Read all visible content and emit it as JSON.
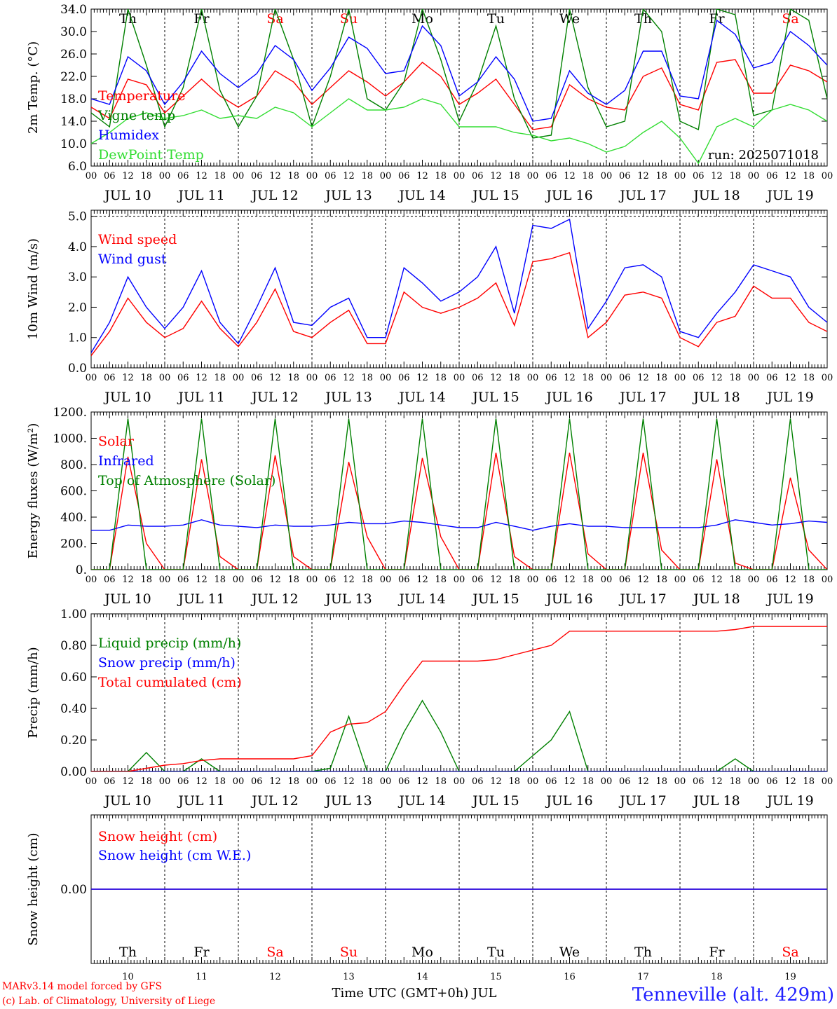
{
  "footer": {
    "model_line": "MARv3.14 model forced by GFS",
    "lab_line": "(c) Lab. of Climatology, University of Liege",
    "station": "Tenneville (alt. 429m)",
    "x_title": "Time UTC (GMT+0h) JUL"
  },
  "days": {
    "weekday_labels": [
      "Th",
      "Fr",
      "Sa",
      "Su",
      "Mo",
      "Tu",
      "We",
      "Th",
      "Fr",
      "Sa"
    ],
    "weekend_flags": [
      false,
      false,
      true,
      true,
      false,
      false,
      false,
      false,
      false,
      true
    ],
    "date_labels": [
      "JUL 10",
      "JUL 11",
      "JUL 12",
      "JUL 13",
      "JUL 14",
      "JUL 15",
      "JUL 16",
      "JUL 17",
      "JUL 18",
      "JUL 19"
    ],
    "day_numbers": [
      "10",
      "11",
      "12",
      "13",
      "14",
      "15",
      "16",
      "17",
      "18",
      "19"
    ],
    "hour_labels": [
      "00",
      "06",
      "12",
      "18"
    ],
    "final_hour_label": "00"
  },
  "colors": {
    "red": "#ff0000",
    "blue": "#0000ff",
    "green": "#008000",
    "lime": "#33dd33",
    "weekend": "#ff0000"
  },
  "chart_data": [
    {
      "type": "line",
      "ylabel": "2m Temp. (°C)",
      "ylim": [
        6,
        34
      ],
      "yticks": [
        "6.0",
        "10.0",
        "14.0",
        "18.0",
        "22.0",
        "26.0",
        "30.0",
        "34.0"
      ],
      "run_label": "run: 2025071018",
      "legend": [
        "Temperature",
        "Vigne temp",
        "Humidex",
        "DewPoint Temp"
      ],
      "x_hours": [
        0,
        6,
        12,
        18,
        24,
        30,
        36,
        42,
        48,
        54,
        60,
        66,
        72,
        78,
        84,
        90,
        96,
        102,
        108,
        114,
        120,
        126,
        132,
        138,
        144,
        150,
        156,
        162,
        168,
        174,
        180,
        186,
        192,
        198,
        204,
        210,
        216,
        222,
        228,
        234,
        240
      ],
      "series": [
        {
          "name": "Temperature",
          "color": "red",
          "values": [
            16.5,
            14.5,
            21.5,
            20.5,
            15.5,
            18.5,
            21.5,
            18.5,
            16.5,
            18.5,
            23.0,
            21.0,
            17.0,
            20.0,
            23.0,
            21.0,
            18.5,
            21.0,
            24.5,
            22.0,
            17.0,
            19.0,
            21.5,
            17.0,
            12.5,
            13.0,
            20.5,
            18.0,
            16.5,
            16.0,
            22.0,
            23.5,
            17.0,
            16.0,
            24.5,
            25.0,
            19.0,
            19.0,
            24.0,
            23.0,
            21.0
          ]
        },
        {
          "name": "Vigne temp",
          "color": "green",
          "values": [
            15.5,
            13.0,
            34.0,
            24.0,
            13.0,
            20.0,
            34.0,
            19.5,
            13.0,
            18.5,
            34.0,
            25.0,
            13.0,
            22.0,
            34.0,
            18.0,
            16.0,
            21.0,
            34.0,
            25.0,
            14.0,
            21.0,
            31.0,
            18.0,
            11.0,
            11.5,
            34.0,
            20.0,
            13.0,
            14.0,
            34.0,
            30.0,
            14.0,
            12.5,
            34.0,
            33.0,
            15.0,
            16.0,
            34.0,
            32.0,
            18.0
          ]
        },
        {
          "name": "Humidex",
          "color": "blue",
          "values": [
            18.0,
            17.0,
            25.5,
            23.0,
            17.0,
            21.0,
            26.5,
            22.5,
            20.0,
            22.5,
            27.5,
            25.0,
            19.5,
            23.5,
            29.0,
            27.0,
            22.5,
            23.0,
            31.0,
            27.5,
            18.5,
            21.0,
            25.5,
            21.5,
            14.0,
            14.5,
            23.0,
            19.0,
            17.0,
            19.5,
            26.5,
            26.5,
            18.5,
            18.0,
            32.0,
            29.5,
            23.5,
            24.5,
            30.0,
            27.5,
            24.0
          ]
        },
        {
          "name": "DewPoint Temp",
          "color": "lime",
          "values": [
            10.0,
            12.0,
            14.5,
            15.5,
            14.5,
            15.0,
            16.0,
            14.5,
            15.0,
            14.5,
            16.5,
            15.5,
            13.0,
            15.5,
            18.0,
            16.0,
            16.0,
            16.5,
            18.0,
            17.0,
            13.0,
            13.0,
            13.0,
            12.0,
            11.5,
            10.5,
            11.0,
            10.0,
            8.5,
            9.5,
            12.0,
            14.0,
            11.0,
            6.5,
            13.0,
            14.5,
            13.0,
            16.0,
            17.0,
            16.0,
            14.0
          ]
        }
      ]
    },
    {
      "type": "line",
      "ylabel": "10m Wind (m/s)",
      "ylim": [
        0,
        5.2
      ],
      "yticks": [
        "0.0",
        "1.0",
        "2.0",
        "3.0",
        "4.0",
        "5.0"
      ],
      "legend": [
        "Wind speed",
        "Wind gust"
      ],
      "x_hours": [
        0,
        6,
        12,
        18,
        24,
        30,
        36,
        42,
        48,
        54,
        60,
        66,
        72,
        78,
        84,
        90,
        96,
        102,
        108,
        114,
        120,
        126,
        132,
        138,
        144,
        150,
        156,
        162,
        168,
        174,
        180,
        186,
        192,
        198,
        204,
        210,
        216,
        222,
        228,
        234,
        240
      ],
      "series": [
        {
          "name": "Wind speed",
          "color": "red",
          "values": [
            0.4,
            1.2,
            2.3,
            1.5,
            1.0,
            1.3,
            2.2,
            1.3,
            0.7,
            1.5,
            2.6,
            1.2,
            1.0,
            1.5,
            1.9,
            0.8,
            0.8,
            2.5,
            2.0,
            1.8,
            2.0,
            2.3,
            2.8,
            1.4,
            3.5,
            3.6,
            3.8,
            1.0,
            1.5,
            2.4,
            2.5,
            2.3,
            1.0,
            0.7,
            1.5,
            1.7,
            2.7,
            2.3,
            2.3,
            1.5,
            1.2
          ]
        },
        {
          "name": "Wind gust",
          "color": "blue",
          "values": [
            0.5,
            1.5,
            3.0,
            2.0,
            1.3,
            2.0,
            3.2,
            1.5,
            0.8,
            2.0,
            3.3,
            1.5,
            1.4,
            2.0,
            2.3,
            1.0,
            1.0,
            3.3,
            2.8,
            2.2,
            2.5,
            3.0,
            4.0,
            1.8,
            4.7,
            4.6,
            4.9,
            1.3,
            2.2,
            3.3,
            3.4,
            3.0,
            1.2,
            1.0,
            1.8,
            2.5,
            3.4,
            3.2,
            3.0,
            2.0,
            1.5
          ]
        }
      ]
    },
    {
      "type": "line",
      "ylabel": "Energy fluxes (W/m²)",
      "ylim": [
        0,
        1200
      ],
      "yticks": [
        "0.",
        "200.",
        "400.",
        "600.",
        "800.",
        "1000.",
        "1200."
      ],
      "legend": [
        "Solar",
        "Infrared",
        "Top of Atmosphere (Solar)"
      ],
      "x_hours": [
        0,
        6,
        12,
        18,
        24,
        30,
        36,
        42,
        48,
        54,
        60,
        66,
        72,
        78,
        84,
        90,
        96,
        102,
        108,
        114,
        120,
        126,
        132,
        138,
        144,
        150,
        156,
        162,
        168,
        174,
        180,
        186,
        192,
        198,
        204,
        210,
        216,
        222,
        228,
        234,
        240
      ],
      "series": [
        {
          "name": "Solar",
          "color": "red",
          "values": [
            0,
            0,
            860,
            200,
            0,
            0,
            840,
            100,
            0,
            0,
            870,
            100,
            0,
            0,
            820,
            250,
            0,
            0,
            850,
            250,
            0,
            0,
            890,
            100,
            0,
            0,
            890,
            120,
            0,
            0,
            890,
            150,
            0,
            0,
            840,
            50,
            0,
            0,
            700,
            150,
            0
          ]
        },
        {
          "name": "Infrared",
          "color": "blue",
          "values": [
            300,
            300,
            340,
            330,
            330,
            340,
            380,
            340,
            330,
            320,
            340,
            330,
            330,
            340,
            360,
            350,
            350,
            370,
            360,
            340,
            320,
            320,
            360,
            330,
            300,
            330,
            350,
            330,
            330,
            320,
            320,
            320,
            320,
            320,
            340,
            380,
            360,
            340,
            350,
            370,
            360
          ]
        },
        {
          "name": "Top of Atmosphere (Solar)",
          "color": "green",
          "values": [
            0,
            0,
            1150,
            0,
            0,
            0,
            1150,
            0,
            0,
            0,
            1150,
            0,
            0,
            0,
            1150,
            0,
            0,
            0,
            1150,
            0,
            0,
            0,
            1150,
            0,
            0,
            0,
            1150,
            0,
            0,
            0,
            1150,
            0,
            0,
            0,
            1150,
            0,
            0,
            0,
            1150,
            0,
            0
          ]
        }
      ]
    },
    {
      "type": "line",
      "ylabel": "Precip (mm/h)",
      "ylim": [
        0,
        1.0
      ],
      "yticks": [
        "0.00",
        "0.20",
        "0.40",
        "0.60",
        "0.80",
        "1.00"
      ],
      "legend": [
        "Liquid precip (mm/h)",
        "Snow precip (mm/h)",
        "Total cumulated (cm)"
      ],
      "x_hours": [
        0,
        6,
        12,
        18,
        24,
        30,
        36,
        42,
        48,
        54,
        60,
        66,
        72,
        78,
        84,
        90,
        96,
        102,
        108,
        114,
        120,
        126,
        132,
        138,
        144,
        150,
        156,
        162,
        168,
        174,
        180,
        186,
        192,
        198,
        204,
        210,
        216,
        222,
        228,
        234,
        240
      ],
      "series": [
        {
          "name": "Liquid precip (mm/h)",
          "color": "green",
          "values": [
            0,
            0,
            0,
            0.12,
            0,
            0,
            0.08,
            0,
            0,
            0,
            0,
            0,
            0,
            0.02,
            0.35,
            0,
            0,
            0.25,
            0.45,
            0.25,
            0,
            0,
            0,
            0,
            0.1,
            0.2,
            0.38,
            0,
            0,
            0,
            0,
            0,
            0,
            0,
            0,
            0.08,
            0,
            0,
            0,
            0,
            0
          ]
        },
        {
          "name": "Snow precip (mm/h)",
          "color": "blue",
          "values": [
            0,
            0,
            0,
            0,
            0,
            0,
            0,
            0,
            0,
            0,
            0,
            0,
            0,
            0,
            0,
            0,
            0,
            0,
            0,
            0,
            0,
            0,
            0,
            0,
            0,
            0,
            0,
            0,
            0,
            0,
            0,
            0,
            0,
            0,
            0,
            0,
            0,
            0,
            0,
            0,
            0
          ]
        },
        {
          "name": "Total cumulated (cm)",
          "color": "red",
          "values": [
            0,
            0,
            0,
            0.02,
            0.04,
            0.05,
            0.07,
            0.08,
            0.08,
            0.08,
            0.08,
            0.08,
            0.1,
            0.25,
            0.3,
            0.31,
            0.38,
            0.55,
            0.7,
            0.7,
            0.7,
            0.7,
            0.71,
            0.74,
            0.77,
            0.8,
            0.89,
            0.89,
            0.89,
            0.89,
            0.89,
            0.89,
            0.89,
            0.89,
            0.89,
            0.9,
            0.92,
            0.92,
            0.92,
            0.92,
            0.92
          ]
        }
      ]
    },
    {
      "type": "line",
      "ylabel": "Snow height (cm)",
      "ylim": [
        -1,
        1
      ],
      "yticks": [
        "0.00"
      ],
      "legend": [
        "Snow height (cm)",
        "Snow height (cm W.E.)"
      ],
      "x_hours": [
        0,
        240
      ],
      "series": [
        {
          "name": "Snow height (cm)",
          "color": "red",
          "values": [
            0,
            0
          ]
        },
        {
          "name": "Snow height (cm W.E.)",
          "color": "blue",
          "values": [
            0,
            0
          ]
        }
      ]
    }
  ]
}
